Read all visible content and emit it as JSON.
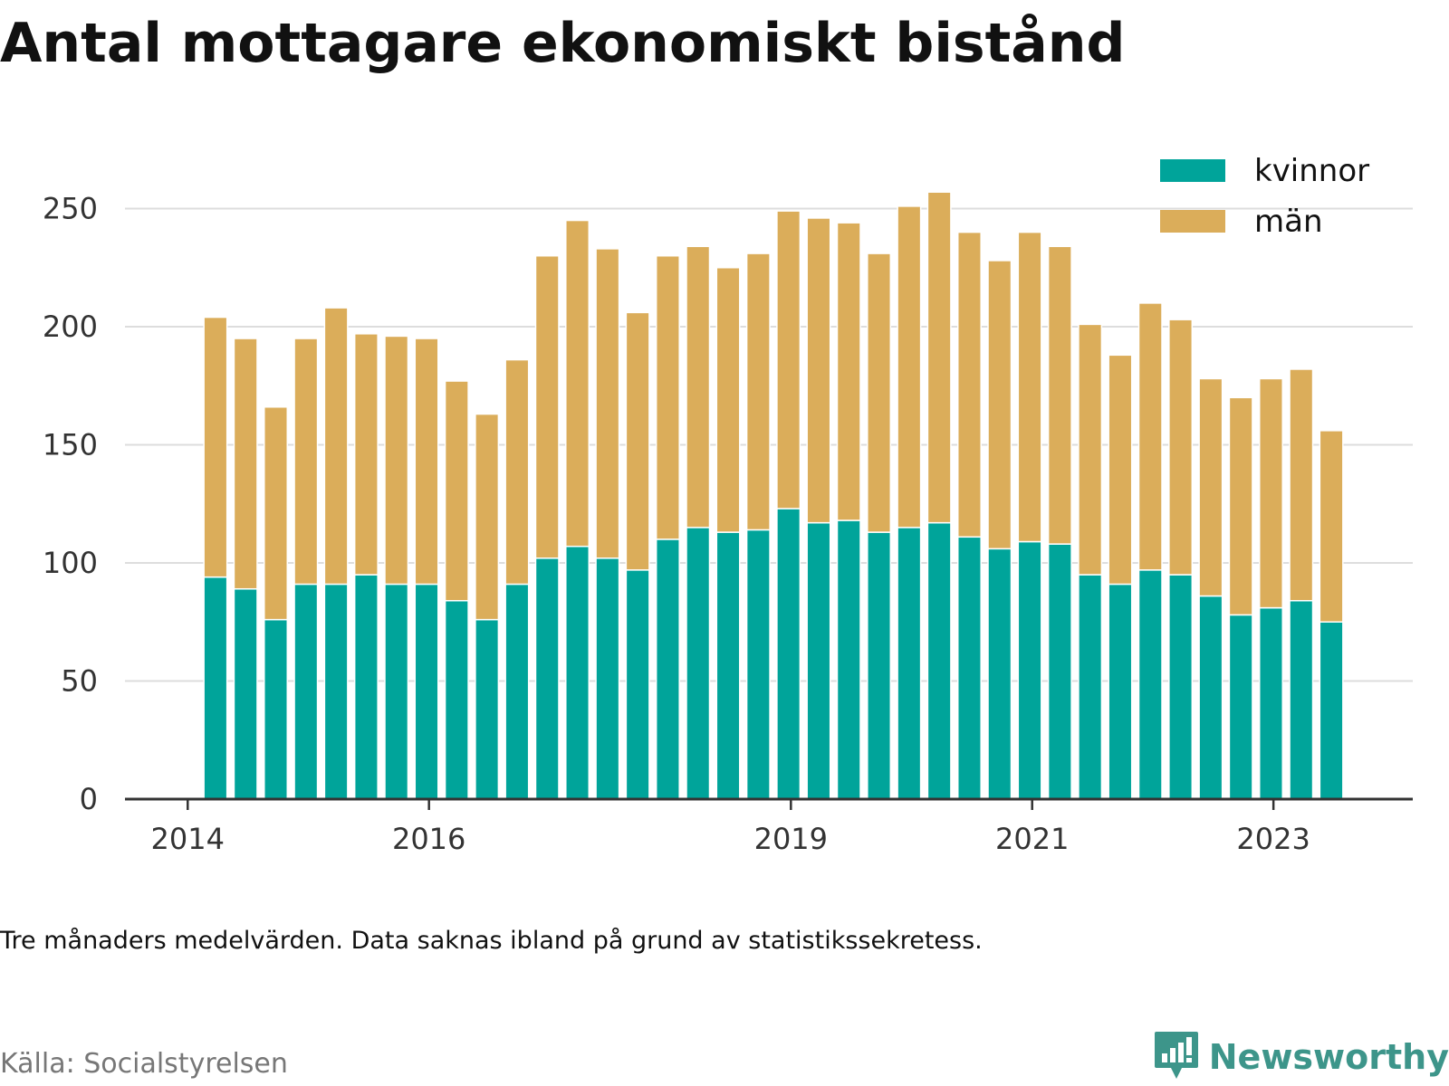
{
  "title": "Antal mottagare ekonomiskt bistånd",
  "note": "Tre månaders medelvärden. Data saknas ibland på grund av statistikssekretess.",
  "source": "Källa: Socialstyrelsen",
  "brand": {
    "name": "Newsworthy",
    "icon": "bar-chart-speech-bubble-icon",
    "color": "#3d958a"
  },
  "chart_data": {
    "type": "bar",
    "stacked": true,
    "grid": true,
    "legend_position": "top-right",
    "ylim": [
      0,
      270
    ],
    "yticks": [
      0,
      50,
      100,
      150,
      200,
      250
    ],
    "xticks": [
      {
        "label": "2014",
        "pos": -0.92
      },
      {
        "label": "2016",
        "pos": 7.08
      },
      {
        "label": "2019",
        "pos": 19.08
      },
      {
        "label": "2021",
        "pos": 27.08
      },
      {
        "label": "2023",
        "pos": 35.08
      }
    ],
    "x_domain": [
      -3,
      39.7
    ],
    "series": [
      {
        "name": "kvinnor",
        "color": "#00a49a",
        "values": [
          94,
          89,
          76,
          91,
          91,
          95,
          91,
          91,
          84,
          76,
          91,
          102,
          107,
          102,
          97,
          110,
          115,
          113,
          114,
          123,
          117,
          118,
          113,
          115,
          117,
          111,
          106,
          109,
          108,
          95,
          91,
          97,
          95,
          86,
          78,
          81,
          84,
          75
        ]
      },
      {
        "name": "män",
        "color": "#dbad5a",
        "values": [
          110,
          106,
          90,
          104,
          117,
          102,
          105,
          104,
          93,
          87,
          95,
          128,
          138,
          131,
          109,
          120,
          119,
          112,
          117,
          126,
          129,
          126,
          118,
          136,
          140,
          129,
          122,
          131,
          126,
          106,
          97,
          113,
          108,
          92,
          92,
          97,
          98,
          81
        ]
      }
    ]
  }
}
